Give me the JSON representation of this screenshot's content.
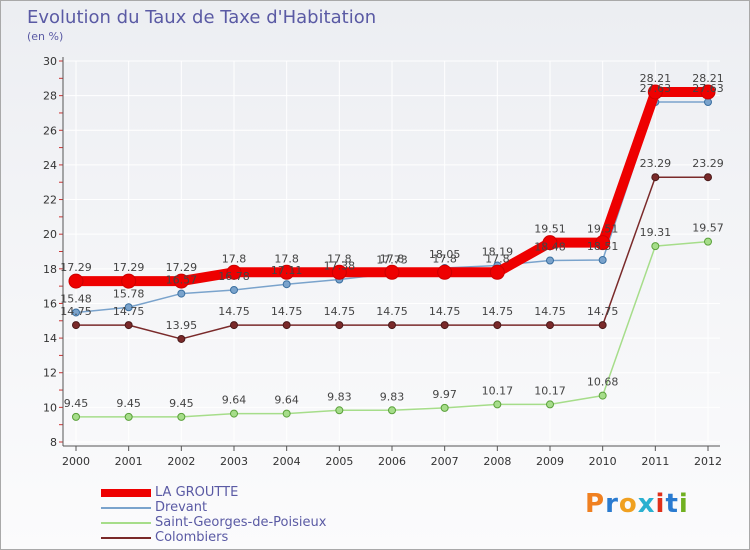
{
  "chart_data": {
    "type": "line",
    "title": "Evolution du Taux de Taxe d'Habitation",
    "subtitle": "(en %)",
    "xlabel": "",
    "ylabel": "",
    "categories": [
      "2000",
      "2001",
      "2002",
      "2003",
      "2004",
      "2005",
      "2006",
      "2007",
      "2008",
      "2009",
      "2010",
      "2011",
      "2012"
    ],
    "ylim": [
      8,
      30
    ],
    "yticks": [
      8,
      10,
      12,
      14,
      16,
      18,
      20,
      22,
      24,
      26,
      28,
      30
    ],
    "grid": true,
    "legend_position": "bottom-left",
    "series": [
      {
        "name": "LA GROUTTE",
        "color": "#ee0000",
        "values": [
          17.29,
          17.29,
          17.29,
          17.8,
          17.8,
          17.8,
          17.8,
          17.8,
          17.8,
          19.51,
          19.51,
          28.21,
          28.21
        ],
        "labels": [
          "17.29",
          "17.29",
          "17.29",
          "17.8",
          "17.8",
          "17.8",
          "17.8",
          "17.8",
          "17.8",
          "19.51",
          "19.51",
          "28.21",
          "28.21"
        ]
      },
      {
        "name": "Drevant",
        "color": "#7aa3cc",
        "values": [
          15.48,
          15.78,
          16.57,
          16.78,
          17.11,
          17.38,
          17.73,
          18.05,
          18.19,
          18.48,
          18.51,
          27.63,
          27.63
        ],
        "labels": [
          "15.48",
          "15.78",
          "16.57",
          "16.78",
          "17.11",
          "17.38",
          "17.73",
          "18.05",
          "18.19",
          "18.48",
          "18.51",
          "27.63",
          "27.63"
        ]
      },
      {
        "name": "Saint-Georges-de-Poisieux",
        "color": "#a6dd8a",
        "values": [
          9.45,
          9.45,
          9.45,
          9.64,
          9.64,
          9.83,
          9.83,
          9.97,
          10.17,
          10.17,
          10.68,
          19.31,
          19.57
        ],
        "labels": [
          "9.45",
          "9.45",
          "9.45",
          "9.64",
          "9.64",
          "9.83",
          "9.83",
          "9.97",
          "10.17",
          "10.17",
          "10.68",
          "19.31",
          "19.57"
        ]
      },
      {
        "name": "Colombiers",
        "color": "#7a2a2a",
        "values": [
          14.75,
          14.75,
          13.95,
          14.75,
          14.75,
          14.75,
          14.75,
          14.75,
          14.75,
          14.75,
          14.75,
          23.29,
          23.29
        ],
        "labels": [
          "14.75",
          "14.75",
          "13.95",
          "14.75",
          "14.75",
          "14.75",
          "14.75",
          "14.75",
          "14.75",
          "14.75",
          "14.75",
          "23.29",
          "23.29"
        ]
      }
    ]
  },
  "logo": {
    "text": "Proxiti",
    "colors": [
      "#f08020",
      "#2a7bd0",
      "#f0a020",
      "#2ab0d0",
      "#e0301a",
      "#2a7bd0",
      "#70b020"
    ]
  }
}
